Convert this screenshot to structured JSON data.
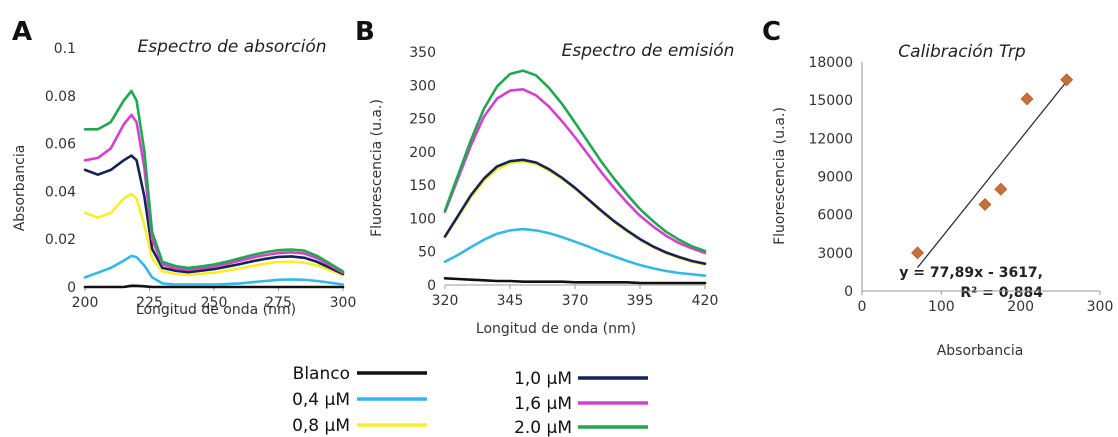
{
  "chart_data": [
    {
      "type": "line",
      "panel": "A",
      "title": "Espectro de absorción",
      "xlabel": "Longitud de onda (nm)",
      "ylabel": "Absorbancia",
      "xlim": [
        200,
        300
      ],
      "ylim": [
        0,
        0.1
      ],
      "xticks": [
        "200",
        "225",
        "250",
        "275",
        "300"
      ],
      "yticks": [
        "0",
        "0.02",
        "0.04",
        "0.06",
        "0.08",
        "0.1"
      ],
      "x": [
        200,
        205,
        210,
        215,
        218,
        220,
        223,
        226,
        230,
        235,
        240,
        245,
        250,
        255,
        260,
        265,
        270,
        275,
        280,
        285,
        290,
        295,
        300
      ],
      "series": [
        {
          "name": "Blanco",
          "color": "#111111",
          "values": [
            0,
            0,
            0,
            0,
            0.0005,
            0.0005,
            0.0003,
            0,
            0,
            0,
            0,
            0,
            0,
            0,
            0,
            0,
            0,
            0,
            0,
            0,
            0,
            0,
            0
          ]
        },
        {
          "name": "0,4 µM",
          "color": "#33b8e8",
          "values": [
            0.004,
            0.006,
            0.008,
            0.011,
            0.013,
            0.0125,
            0.009,
            0.004,
            0.0015,
            0.001,
            0.001,
            0.001,
            0.001,
            0.0012,
            0.0015,
            0.002,
            0.0025,
            0.003,
            0.0032,
            0.003,
            0.0025,
            0.0018,
            0.001
          ]
        },
        {
          "name": "0,8 µM",
          "color": "#f5ef2a",
          "values": [
            0.031,
            0.029,
            0.031,
            0.037,
            0.039,
            0.037,
            0.026,
            0.012,
            0.0065,
            0.0055,
            0.005,
            0.0055,
            0.006,
            0.0068,
            0.0078,
            0.0088,
            0.0098,
            0.0104,
            0.0106,
            0.0102,
            0.009,
            0.007,
            0.005
          ]
        },
        {
          "name": "1,0 µM",
          "color": "#152357",
          "values": [
            0.049,
            0.047,
            0.049,
            0.053,
            0.055,
            0.053,
            0.038,
            0.016,
            0.008,
            0.0068,
            0.0062,
            0.0068,
            0.0075,
            0.0085,
            0.0096,
            0.0108,
            0.0118,
            0.0126,
            0.0128,
            0.0122,
            0.0105,
            0.008,
            0.0055
          ]
        },
        {
          "name": "1,6 µM",
          "color": "#d63fd0",
          "values": [
            0.053,
            0.054,
            0.058,
            0.068,
            0.072,
            0.069,
            0.05,
            0.02,
            0.0095,
            0.0078,
            0.0072,
            0.0078,
            0.0086,
            0.0097,
            0.011,
            0.0123,
            0.0134,
            0.0142,
            0.0145,
            0.014,
            0.012,
            0.009,
            0.006
          ]
        },
        {
          "name": "2.0 µM",
          "color": "#1fa84f",
          "values": [
            0.066,
            0.066,
            0.069,
            0.078,
            0.082,
            0.078,
            0.057,
            0.023,
            0.0105,
            0.0088,
            0.008,
            0.0086,
            0.0094,
            0.0106,
            0.012,
            0.0134,
            0.0146,
            0.0154,
            0.0157,
            0.0152,
            0.013,
            0.0098,
            0.0065
          ]
        }
      ]
    },
    {
      "type": "line",
      "panel": "B",
      "title": "Espectro de emisión",
      "xlabel": "Longitud de onda (nm)",
      "ylabel": "Fluorescencia (u.a.)",
      "xlim": [
        320,
        420
      ],
      "ylim": [
        0,
        350
      ],
      "xticks": [
        "320",
        "345",
        "370",
        "395",
        "420"
      ],
      "yticks": [
        "0",
        "50",
        "100",
        "150",
        "200",
        "250",
        "300",
        "350"
      ],
      "x": [
        320,
        325,
        330,
        335,
        340,
        345,
        350,
        355,
        360,
        365,
        370,
        375,
        380,
        385,
        390,
        395,
        400,
        405,
        410,
        415,
        420
      ],
      "series": [
        {
          "name": "Blanco",
          "values": [
            10,
            9,
            8,
            7,
            6,
            6,
            5,
            5,
            5,
            5,
            4,
            4,
            4,
            4,
            4,
            3,
            3,
            3,
            3,
            3,
            3
          ]
        },
        {
          "name": "0,4 µM",
          "values": [
            35,
            45,
            57,
            68,
            77,
            82,
            84,
            82,
            78,
            72,
            65,
            58,
            50,
            43,
            36,
            30,
            25,
            21,
            18,
            16,
            14
          ]
        },
        {
          "name": "0,8 µM",
          "values": [
            72,
            102,
            132,
            157,
            174,
            183,
            186,
            182,
            172,
            160,
            145,
            128,
            111,
            95,
            81,
            68,
            57,
            48,
            41,
            35,
            31
          ]
        },
        {
          "name": "1,0 µM",
          "values": [
            73,
            104,
            135,
            160,
            178,
            186,
            188,
            184,
            174,
            161,
            146,
            129,
            112,
            96,
            82,
            69,
            58,
            49,
            42,
            36,
            32
          ]
        },
        {
          "name": "1,6 µM",
          "values": [
            110,
            160,
            210,
            253,
            280,
            292,
            294,
            285,
            268,
            246,
            222,
            196,
            170,
            146,
            124,
            104,
            88,
            74,
            63,
            55,
            48
          ]
        },
        {
          "name": "2.0 µM",
          "values": [
            112,
            165,
            218,
            265,
            298,
            317,
            322,
            315,
            296,
            272,
            244,
            215,
            186,
            160,
            136,
            114,
            96,
            80,
            68,
            58,
            51
          ]
        }
      ]
    },
    {
      "type": "scatter",
      "panel": "C",
      "title": "Calibración Trp",
      "xlabel": "Absorbancia",
      "ylabel": "Fluorescencia (u.a.)",
      "xlim": [
        0,
        300
      ],
      "ylim": [
        0,
        18000
      ],
      "xticks": [
        "0",
        "100",
        "200",
        "300"
      ],
      "yticks": [
        "0",
        "3000",
        "6000",
        "9000",
        "12000",
        "15000",
        "18000"
      ],
      "points": [
        {
          "x": 70,
          "y": 3000
        },
        {
          "x": 155,
          "y": 6800
        },
        {
          "x": 175,
          "y": 8000
        },
        {
          "x": 208,
          "y": 15100
        },
        {
          "x": 258,
          "y": 16600
        }
      ],
      "trendline": {
        "slope": 77.89,
        "intercept": -3617,
        "x_range": [
          70,
          258
        ]
      },
      "annotation_lines": [
        "y = 77,89x - 3617,",
        "R² = 0,884"
      ],
      "marker_color": "#c8703a"
    }
  ],
  "legend": [
    {
      "label": "Blanco",
      "color": "#111111"
    },
    {
      "label": "0,4 µM",
      "color": "#33b8e8"
    },
    {
      "label": "0,8 µM",
      "color": "#f5ef2a"
    },
    {
      "label": "1,0 µM",
      "color": "#152357"
    },
    {
      "label": "1,6 µM",
      "color": "#d63fd0"
    },
    {
      "label": "2.0 µM",
      "color": "#1fa84f"
    }
  ]
}
